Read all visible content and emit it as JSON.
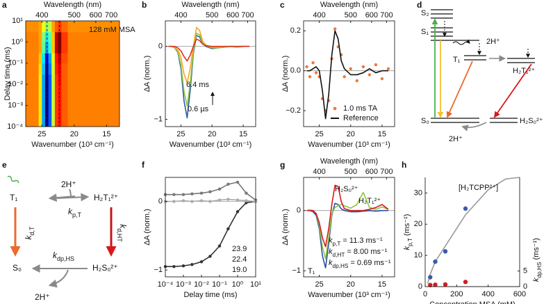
{
  "chart_data": [
    {
      "type": "heatmap",
      "panel": "a",
      "xlabel": "Wavenumber (10³ cm⁻¹)",
      "ylabel": "Delay time (ms)",
      "x2label": "Wavelength (nm)",
      "xlim": [
        27.5,
        13
      ],
      "xticks": [
        25,
        20,
        15
      ],
      "x2ticks": [
        400,
        500,
        600,
        700
      ],
      "ylim": [
        0.0001,
        10
      ],
      "yscale": "log",
      "yticks": [
        {
          "value": 0.0001,
          "label": "10⁻⁴"
        },
        {
          "value": 0.001,
          "label": "10⁻³"
        },
        {
          "value": 0.01,
          "label": "10⁻²"
        },
        {
          "value": 0.1,
          "label": "10⁻¹"
        },
        {
          "value": 1,
          "label": "10⁰"
        },
        {
          "value": 10,
          "label": "10¹"
        }
      ],
      "colormap": "jet",
      "zlim": [
        -1,
        0.4
      ],
      "xbins": [
        27.5,
        26.5,
        25.5,
        25,
        24.5,
        24,
        23.5,
        23,
        22.5,
        22,
        21,
        20,
        18,
        16,
        13
      ],
      "ybins": [
        0.0001,
        0.001,
        0.01,
        0.03,
        0.1,
        0.3,
        1,
        3,
        10
      ],
      "z": [
        [
          0.05,
          0.05,
          -0.1,
          -0.6,
          -1,
          -0.7,
          -0.2,
          0.15,
          0.2,
          0.1,
          0.05,
          0.05,
          0.05,
          0.05
        ],
        [
          0.05,
          0.05,
          -0.1,
          -0.6,
          -1,
          -0.7,
          -0.2,
          0.15,
          0.2,
          0.1,
          0.05,
          0.05,
          0.05,
          0.05
        ],
        [
          0.05,
          0.05,
          -0.1,
          -0.6,
          -0.98,
          -0.7,
          -0.2,
          0.15,
          0.22,
          0.1,
          0.05,
          0.05,
          0.05,
          0.05
        ],
        [
          0.05,
          0.05,
          -0.08,
          -0.55,
          -0.95,
          -0.65,
          -0.18,
          0.18,
          0.25,
          0.1,
          0.05,
          0.05,
          0.05,
          0.05
        ],
        [
          0.05,
          0.05,
          -0.05,
          -0.5,
          -0.85,
          -0.6,
          -0.15,
          0.2,
          0.3,
          0.12,
          0.05,
          0.05,
          0.05,
          0.05
        ],
        [
          0.05,
          0.05,
          0,
          -0.35,
          -0.6,
          -0.4,
          -0.05,
          0.3,
          0.4,
          0.15,
          0.05,
          0.05,
          0.05,
          0.05
        ],
        [
          0.05,
          0.05,
          0,
          -0.3,
          -0.5,
          -0.35,
          -0.05,
          0.3,
          0.4,
          0.15,
          0.05,
          0.05,
          0.05,
          0.05
        ],
        [
          0.03,
          0.03,
          0,
          -0.15,
          -0.3,
          -0.2,
          0,
          0.1,
          0.15,
          0.08,
          0.03,
          0.03,
          0.03,
          0.03
        ]
      ],
      "vlines": [
        24.2,
        22.3
      ],
      "annotation": "128 mM MSA"
    },
    {
      "type": "line",
      "panel": "b",
      "xlabel": "Wavenumber (10³ cm⁻¹)",
      "ylabel": "ΔA (norm.)",
      "x2label": "Wavelength (nm)",
      "xlim": [
        27.5,
        13
      ],
      "xticks": [
        25,
        20,
        15
      ],
      "x2ticks": [
        400,
        500,
        600,
        700
      ],
      "ylim": [
        -1.1,
        0.35
      ],
      "yticks": [
        {
          "value": -1,
          "label": "−1"
        },
        0
      ],
      "zero_line": true,
      "x": [
        27,
        26.5,
        26,
        25.5,
        25,
        24.5,
        24,
        23.5,
        23,
        22.5,
        22,
        21.5,
        21,
        20,
        19,
        18,
        17,
        16,
        15,
        14
      ],
      "series": [
        {
          "name": "0.6 µs",
          "color": "#2d5aa8",
          "style": "line",
          "values": [
            0,
            0,
            -0.02,
            -0.08,
            -0.3,
            -0.75,
            -0.98,
            -0.6,
            -0.1,
            0.15,
            0.13,
            0.04,
            0,
            -0.03,
            -0.02,
            -0.01,
            0,
            -0.01,
            0,
            0
          ]
        },
        {
          "color": "#8cc63f",
          "style": "line",
          "values": [
            0,
            0,
            -0.02,
            -0.07,
            -0.25,
            -0.62,
            -0.82,
            -0.5,
            -0.07,
            0.18,
            0.16,
            0.05,
            0.01,
            -0.02,
            -0.02,
            -0.01,
            0,
            -0.01,
            0,
            0
          ]
        },
        {
          "color": "#f5a623",
          "style": "line",
          "values": [
            0,
            0,
            -0.01,
            -0.05,
            -0.15,
            -0.38,
            -0.5,
            -0.3,
            0,
            0.26,
            0.22,
            0.07,
            0.02,
            -0.01,
            -0.01,
            0,
            0,
            0,
            0,
            0
          ]
        },
        {
          "name": "6.4 ms",
          "color": "#e0301e",
          "style": "line",
          "values": [
            0,
            0,
            0,
            -0.02,
            -0.06,
            -0.14,
            -0.2,
            -0.12,
            0,
            0.1,
            0.08,
            0.03,
            0.01,
            0,
            0,
            0,
            0,
            0,
            0,
            0
          ]
        }
      ]
    },
    {
      "type": "line",
      "panel": "c",
      "xlabel": "Wavenumber (10³ cm⁻¹)",
      "ylabel": "ΔA (norm.)",
      "x2label": "Wavelength (nm)",
      "xlim": [
        27.5,
        13
      ],
      "xticks": [
        25,
        20,
        15
      ],
      "x2ticks": [
        400,
        500,
        600,
        700
      ],
      "ylim": [
        -0.28,
        0.25
      ],
      "yticks": [
        {
          "value": -0.2,
          "label": "−0.2"
        },
        {
          "value": 0,
          "label": "0.0"
        },
        0.2
      ],
      "zero_line": true,
      "x": [
        27,
        26.5,
        26,
        25.5,
        25,
        24.5,
        24,
        23.5,
        23,
        22.5,
        22,
        21.5,
        21,
        20,
        19,
        18,
        17,
        16,
        15,
        14
      ],
      "series": [
        {
          "name": "1.0 ms TA",
          "color": "#ec7a3c",
          "style": "markers",
          "values": [
            0.02,
            -0.03,
            0.04,
            -0.01,
            -0.03,
            -0.14,
            -0.2,
            -0.15,
            0.06,
            0.21,
            0.12,
            0.08,
            -0.03,
            0.01,
            -0.05,
            0.02,
            -0.02,
            0.03,
            -0.04,
            0.01
          ]
        },
        {
          "name": "Reference",
          "color": "#111111",
          "style": "line",
          "values": [
            0,
            0,
            0.01,
            0.02,
            0,
            -0.1,
            -0.24,
            -0.12,
            0.08,
            0.2,
            0.16,
            0.05,
            0.01,
            -0.02,
            -0.02,
            -0.01,
            0.01,
            -0.01,
            0,
            0
          ]
        }
      ]
    },
    {
      "type": "line",
      "panel": "f",
      "xlabel": "Delay time (ms)",
      "ylabel": "ΔA (norm.)",
      "xlim": [
        0.0001,
        10
      ],
      "xscale": "log",
      "xticks": [
        {
          "value": 0.0001,
          "label": "10⁻⁴"
        },
        {
          "value": 0.001,
          "label": "10⁻³"
        },
        {
          "value": 0.01,
          "label": "10⁻²"
        },
        {
          "value": 0.1,
          "label": "10⁻¹"
        },
        {
          "value": 1,
          "label": "10⁰"
        },
        {
          "value": 10,
          "label": "10¹"
        }
      ],
      "ylim": [
        -1.1,
        0.35
      ],
      "yticks": [
        {
          "value": -1,
          "label": "−1"
        },
        0
      ],
      "zero_line": true,
      "x": [
        0.0001,
        0.0003,
        0.001,
        0.003,
        0.01,
        0.03,
        0.1,
        0.3,
        1,
        3,
        10
      ],
      "series": [
        {
          "name": "23.9",
          "color": "#333333",
          "style": "markers+line",
          "values": [
            -0.95,
            -0.95,
            -0.94,
            -0.92,
            -0.88,
            -0.8,
            -0.65,
            -0.4,
            -0.15,
            -0.02,
            0
          ]
        },
        {
          "name": "22.4",
          "color": "#777777",
          "style": "markers+line",
          "values": [
            0.1,
            0.1,
            0.1,
            0.11,
            0.12,
            0.14,
            0.18,
            0.25,
            0.28,
            0.12,
            0.02
          ]
        },
        {
          "name": "19.0",
          "color": "#aaaaaa",
          "style": "markers+line",
          "values": [
            0,
            0,
            0.01,
            0,
            0.01,
            0,
            0.02,
            0.03,
            0.02,
            0.01,
            0
          ]
        }
      ]
    },
    {
      "type": "line",
      "panel": "g",
      "xlabel": "Wavenumber (10³ cm⁻¹)",
      "ylabel": "ΔA (norm.)",
      "x2label": "Wavelength (nm)",
      "xlim": [
        27.5,
        13
      ],
      "xticks": [
        25,
        20,
        15
      ],
      "x2ticks": [
        400,
        500,
        600,
        700
      ],
      "ylim": [
        -1.1,
        0.55
      ],
      "yticks": [
        {
          "value": -1,
          "label": "−1"
        },
        0
      ],
      "zero_line": true,
      "x": [
        27,
        26.5,
        26,
        25.5,
        25,
        24.5,
        24,
        23.5,
        23,
        22.5,
        22,
        21.5,
        21,
        20,
        19,
        18,
        17,
        16,
        15,
        14
      ],
      "series": [
        {
          "name": "T₁",
          "color": "#2b4fa0",
          "style": "line",
          "values": [
            0,
            0,
            -0.02,
            -0.08,
            -0.3,
            -0.75,
            -0.95,
            -0.55,
            -0.08,
            0.12,
            0.1,
            0.03,
            0,
            -0.02,
            -0.02,
            -0.01,
            0,
            -0.01,
            0,
            0
          ]
        },
        {
          "name": "H₂T₁²⁺",
          "color": "#8dc63f",
          "style": "line",
          "values": [
            0,
            0.01,
            0,
            -0.05,
            -0.25,
            -0.6,
            -0.8,
            -0.45,
            -0.05,
            0.05,
            0.08,
            0.1,
            0.08,
            0.04,
            0.1,
            0.3,
            0.05,
            0.02,
            0.06,
            0.02
          ]
        },
        {
          "name": "H₂S₀²⁺",
          "color": "#d7191c",
          "style": "line",
          "values": [
            0,
            0,
            0,
            -0.05,
            -0.2,
            -0.45,
            -0.6,
            -0.3,
            0.1,
            0.42,
            0.4,
            0.15,
            0.03,
            0,
            0,
            0,
            0.02,
            0.05,
            0.1,
            0.02
          ]
        }
      ],
      "params": [
        {
          "symbol": "k",
          "sub": "p,T",
          "text": "= 11.3 ms⁻¹"
        },
        {
          "symbol": "k",
          "sub": "d,HT",
          "text": "= 8.00 ms⁻¹"
        },
        {
          "symbol": "k",
          "sub": "dp,HS",
          "text": "= 0.69 ms⁻¹"
        }
      ]
    },
    {
      "type": "scatter",
      "panel": "h",
      "xlabel": "Concentration MSA (mM)",
      "ylabel": {
        "symbol": "k",
        "sub": "p,T",
        "unit": "(ms⁻¹)"
      },
      "y2label": {
        "symbol": "k",
        "sub": "dp,HS",
        "unit": "(ms⁻¹)"
      },
      "xlim": [
        0,
        600
      ],
      "xticks": [
        0,
        200,
        400,
        600
      ],
      "ylim": [
        0,
        35
      ],
      "yticks": [
        0,
        10,
        20,
        30
      ],
      "ycolor": "#3a5ba9",
      "y2lim": [
        0,
        35
      ],
      "y2ticks": [
        0,
        5
      ],
      "y2color": "#d7191c",
      "series": [
        {
          "name": "[H₂TCPP²⁺]",
          "color": "#9a9a9a",
          "style": "line",
          "x": [
            16,
            32,
            64,
            128,
            256,
            400,
            512,
            600
          ],
          "values": [
            1,
            4,
            8,
            13,
            23,
            31,
            34.5,
            35
          ]
        },
        {
          "color": "#3a5ba9",
          "style": "markers",
          "x": [
            32,
            64,
            128,
            256
          ],
          "values": [
            3,
            8,
            11.3,
            25
          ]
        },
        {
          "color": "#d7191c",
          "style": "markers",
          "axis": "y2",
          "x": [
            32,
            64,
            128,
            256
          ],
          "values": [
            0.5,
            0.6,
            0.69,
            1.5
          ]
        }
      ]
    }
  ],
  "diagrams": {
    "d": {
      "panel": "d",
      "labels": [
        "S₂",
        "S₁",
        "T₁",
        "2H⁺",
        "H₂T₁²⁺",
        "S₀",
        "H₂S₀²⁺",
        "2H⁺"
      ]
    },
    "e": {
      "panel": "e",
      "labels": [
        "T₁",
        "2H⁺",
        "H₂T₁²⁺",
        "S₀",
        "H₂S₀²⁺",
        "2H⁺"
      ],
      "rates": [
        {
          "symbol": "k",
          "sub": "p,T"
        },
        {
          "symbol": "k",
          "sub": "d,T"
        },
        {
          "symbol": "k",
          "sub": "d,HT"
        },
        {
          "symbol": "k",
          "sub": "dp,HS"
        }
      ]
    }
  }
}
